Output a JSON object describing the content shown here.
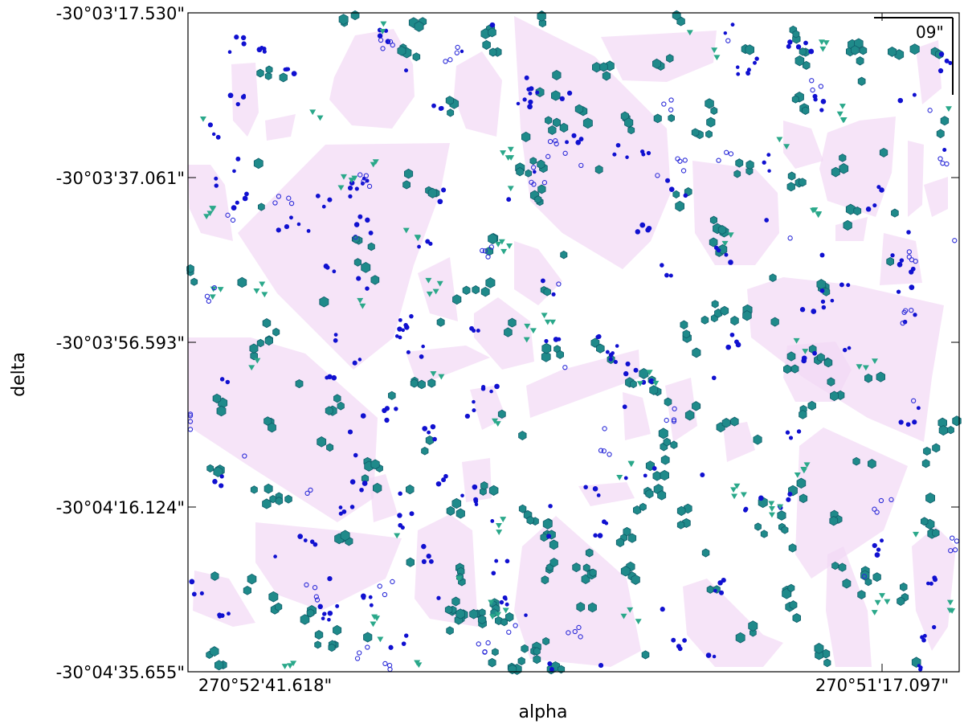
{
  "chart_data": {
    "type": "scatter",
    "title": "",
    "xlabel": "alpha",
    "ylabel": "delta",
    "x_tick_labels": [
      "270°52'41.618\"",
      "270°51'17.097\""
    ],
    "y_tick_labels": [
      "-30°03'17.530\"",
      "-30°03'37.061\"",
      "-30°03'56.593\"",
      "-30°04'16.124\"",
      "-30°04'35.655\""
    ],
    "scale_bar_label": "09\"",
    "grid": false,
    "legend": "none",
    "colors": {
      "hull_fill": "#f2d9f5",
      "series_a": "#1f8a8a",
      "series_b": "#1010d0",
      "series_c": "#2aa88a",
      "series_d": "#2a2ad8"
    },
    "series": [
      {
        "marker": "filled-hexagon",
        "color": "#1f8a8a",
        "approx_count": 520
      },
      {
        "marker": "filled-dot",
        "color": "#1010d0",
        "approx_count": 400
      },
      {
        "marker": "down-triangle",
        "color": "#2aa88a",
        "approx_count": 140
      },
      {
        "marker": "open-circle",
        "color": "#2a2ad8",
        "approx_count": 130
      }
    ],
    "hull_regions": 45
  }
}
